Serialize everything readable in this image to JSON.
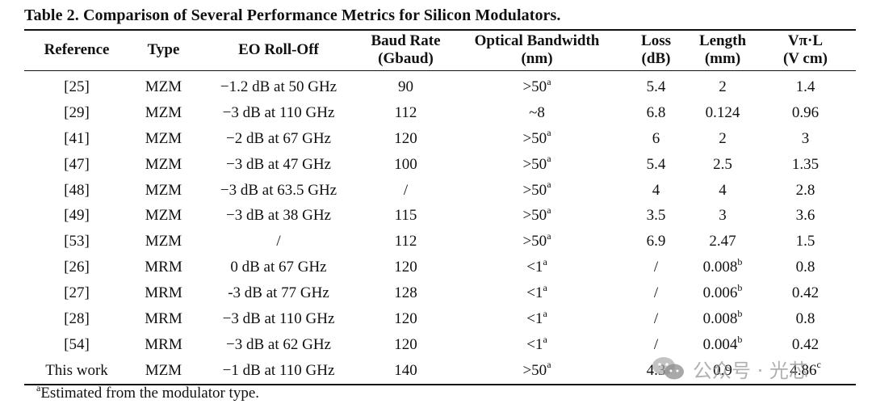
{
  "caption": "Table 2. Comparison of Several Performance Metrics for Silicon Modulators.",
  "headers": [
    {
      "line1": "Reference",
      "line2": ""
    },
    {
      "line1": "Type",
      "line2": ""
    },
    {
      "line1": "EO Roll-Off",
      "line2": ""
    },
    {
      "line1": "Baud Rate",
      "line2": "(Gbaud)"
    },
    {
      "line1": "Optical Bandwidth",
      "line2": "(nm)"
    },
    {
      "line1": "Loss",
      "line2": "(dB)"
    },
    {
      "line1": "Length",
      "line2": "(mm)"
    },
    {
      "line1": "Vπ·L",
      "line2": "(V cm)"
    }
  ],
  "rows": [
    {
      "ref": "[25]",
      "type": "MZM",
      "eo": "−1.2 dB at 50 GHz",
      "baud": "90",
      "bw": ">50",
      "bw_sup": "a",
      "loss": "5.4",
      "length": "2",
      "length_sup": "",
      "vpil": "1.4",
      "vpil_sup": ""
    },
    {
      "ref": "[29]",
      "type": "MZM",
      "eo": "−3 dB at 110 GHz",
      "baud": "112",
      "bw": "~8",
      "bw_sup": "",
      "loss": "6.8",
      "length": "0.124",
      "length_sup": "",
      "vpil": "0.96",
      "vpil_sup": ""
    },
    {
      "ref": "[41]",
      "type": "MZM",
      "eo": "−2 dB at 67 GHz",
      "baud": "120",
      "bw": ">50",
      "bw_sup": "a",
      "loss": "6",
      "length": "2",
      "length_sup": "",
      "vpil": "3",
      "vpil_sup": ""
    },
    {
      "ref": "[47]",
      "type": "MZM",
      "eo": "−3 dB at 47 GHz",
      "baud": "100",
      "bw": ">50",
      "bw_sup": "a",
      "loss": "5.4",
      "length": "2.5",
      "length_sup": "",
      "vpil": "1.35",
      "vpil_sup": ""
    },
    {
      "ref": "[48]",
      "type": "MZM",
      "eo": "−3 dB at 63.5 GHz",
      "baud": "/",
      "bw": ">50",
      "bw_sup": "a",
      "loss": "4",
      "length": "4",
      "length_sup": "",
      "vpil": "2.8",
      "vpil_sup": ""
    },
    {
      "ref": "[49]",
      "type": "MZM",
      "eo": "−3 dB at 38 GHz",
      "baud": "115",
      "bw": ">50",
      "bw_sup": "a",
      "loss": "3.5",
      "length": "3",
      "length_sup": "",
      "vpil": "3.6",
      "vpil_sup": ""
    },
    {
      "ref": "[53]",
      "type": "MZM",
      "eo": "/",
      "baud": "112",
      "bw": ">50",
      "bw_sup": "a",
      "loss": "6.9",
      "length": "2.47",
      "length_sup": "",
      "vpil": "1.5",
      "vpil_sup": ""
    },
    {
      "ref": "[26]",
      "type": "MRM",
      "eo": "0 dB at 67 GHz",
      "baud": "120",
      "bw": "<1",
      "bw_sup": "a",
      "loss": "/",
      "length": "0.008",
      "length_sup": "b",
      "vpil": "0.8",
      "vpil_sup": ""
    },
    {
      "ref": "[27]",
      "type": "MRM",
      "eo": "-3 dB at 77 GHz",
      "baud": "128",
      "bw": "<1",
      "bw_sup": "a",
      "loss": "/",
      "length": "0.006",
      "length_sup": "b",
      "vpil": "0.42",
      "vpil_sup": ""
    },
    {
      "ref": "[28]",
      "type": "MRM",
      "eo": "−3 dB at 110 GHz",
      "baud": "120",
      "bw": "<1",
      "bw_sup": "a",
      "loss": "/",
      "length": "0.008",
      "length_sup": "b",
      "vpil": "0.8",
      "vpil_sup": ""
    },
    {
      "ref": "[54]",
      "type": "MRM",
      "eo": "−3 dB at 62 GHz",
      "baud": "120",
      "bw": "<1",
      "bw_sup": "a",
      "loss": "/",
      "length": "0.004",
      "length_sup": "b",
      "vpil": "0.42",
      "vpil_sup": ""
    },
    {
      "ref": "This work",
      "type": "MZM",
      "eo": "−1 dB at 110 GHz",
      "baud": "140",
      "bw": ">50",
      "bw_sup": "a",
      "loss": "4.3",
      "length": "0.9",
      "length_sup": "",
      "vpil": "4.86",
      "vpil_sup": "c"
    }
  ],
  "footnote": {
    "marker": "a",
    "text": "Estimated from the modulator type."
  },
  "watermark": {
    "icon": "wechat-icon",
    "text": "公众号 · 光芯"
  }
}
